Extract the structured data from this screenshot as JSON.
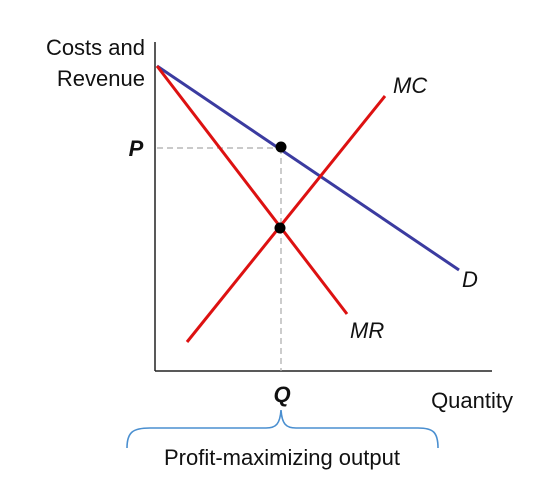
{
  "axes": {
    "y_label_line1": "Costs and",
    "y_label_line2": "Revenue",
    "x_label": "Quantity"
  },
  "curves": {
    "mc": {
      "label": "MC",
      "color": "#dd1111"
    },
    "mr": {
      "label": "MR",
      "color": "#dd1111"
    },
    "d": {
      "label": "D",
      "color": "#3b3ba0"
    }
  },
  "markers": {
    "price_label": "P",
    "quantity_label": "Q"
  },
  "annotation": {
    "text": "Profit-maximizing output",
    "bracket_color": "#4a8fd0"
  }
}
